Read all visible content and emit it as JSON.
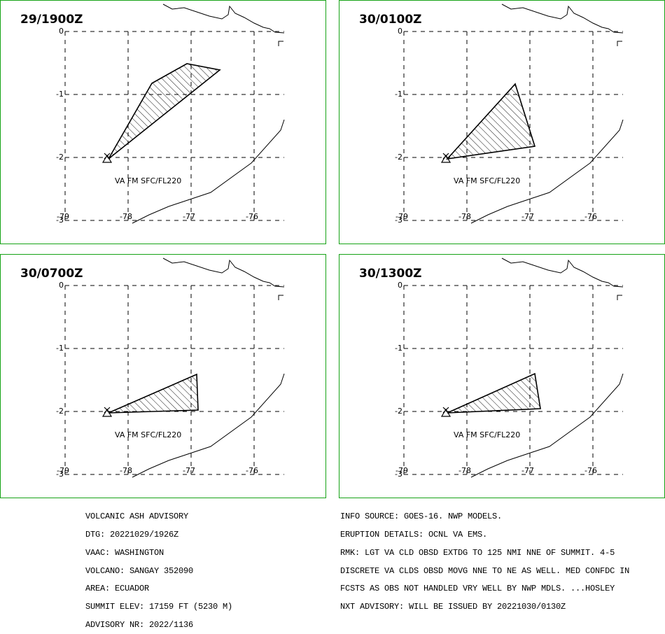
{
  "panels": [
    {
      "title": "29/1900Z",
      "va_label": "VA FM SFC/FL220"
    },
    {
      "title": "30/0100Z",
      "va_label": "VA FM SFC/FL220"
    },
    {
      "title": "30/0700Z",
      "va_label": "VA FM SFC/FL220"
    },
    {
      "title": "30/1300Z",
      "va_label": "VA FM SFC/FL220"
    }
  ],
  "axes": {
    "y_labels": [
      "0",
      "-1",
      "-2",
      "-3"
    ],
    "x_labels": [
      "-79",
      "-78",
      "-77",
      "-76"
    ]
  },
  "advisory_left": [
    "VOLCANIC ASH ADVISORY",
    "DTG: 20221029/1926Z",
    "VAAC: WASHINGTON",
    "VOLCANO: SANGAY 352090",
    "AREA: ECUADOR",
    "SUMMIT ELEV: 17159 FT (5230 M)",
    "ADVISORY NR: 2022/1136"
  ],
  "advisory_right": [
    "INFO SOURCE: GOES-16. NWP MODELS.",
    "ERUPTION DETAILS: OCNL VA EMS.",
    "RMK: LGT VA CLD OBSD EXTDG TO 125 NMI NNE OF SUMMIT. 4-5",
    "DISCRETE VA CLDS OBSD MOVG NNE TO NE AS WELL. MED CONFDC IN",
    "FCSTS AS OBS NOT HANDLED VRY WELL BY NWP MDLS. ...HOSLEY",
    "NXT ADVISORY: WILL BE ISSUED BY 20221030/0130Z"
  ],
  "colors": {
    "panel_border": "#17a317",
    "ink": "#000000",
    "background": "#ffffff"
  }
}
